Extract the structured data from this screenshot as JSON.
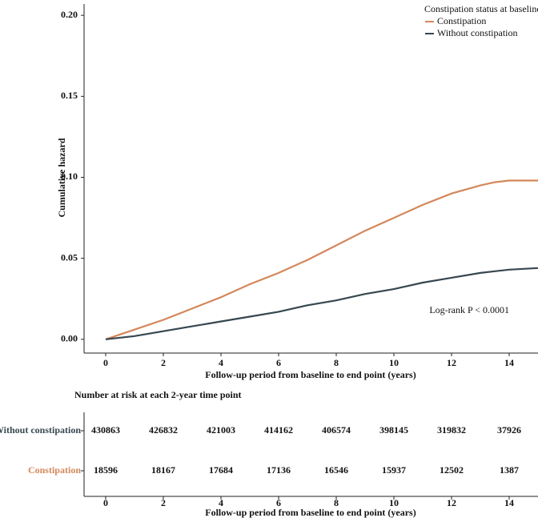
{
  "chart_data": {
    "type": "line",
    "xlabel": "Follow-up period from baseline to end point (years)",
    "ylabel": "Cumulative hazard",
    "legend_title": "Constipation status at baseline",
    "legend": "top-right",
    "annotation": "Log-rank P < 0.0001",
    "x": [
      0,
      1,
      2,
      3,
      4,
      5,
      6,
      7,
      8,
      9,
      10,
      11,
      12,
      13,
      13.5,
      14,
      15
    ],
    "series": [
      {
        "name": "Constipation",
        "color": "#d4875a",
        "values": [
          0,
          0.006,
          0.012,
          0.019,
          0.026,
          0.034,
          0.041,
          0.049,
          0.058,
          0.067,
          0.075,
          0.083,
          0.09,
          0.095,
          0.097,
          0.098,
          0.098
        ]
      },
      {
        "name": "Without constipation",
        "color": "#37474f",
        "values": [
          0,
          0.002,
          0.005,
          0.008,
          0.011,
          0.014,
          0.017,
          0.021,
          0.024,
          0.028,
          0.031,
          0.035,
          0.038,
          0.041,
          0.042,
          0.043,
          0.044
        ]
      }
    ],
    "xlim": [
      -0.75,
      15
    ],
    "ylim": [
      -0.0085,
      0.207
    ],
    "xticks": [
      0,
      2,
      4,
      6,
      8,
      10,
      12,
      14
    ],
    "yticks": [
      {
        "value": 0,
        "label": "0.00"
      },
      {
        "value": 0.05,
        "label": "0.05"
      },
      {
        "value": 0.1,
        "label": "0.10"
      },
      {
        "value": 0.15,
        "label": "0.15"
      },
      {
        "value": 0.2,
        "label": "0.20"
      }
    ],
    "risk_table": {
      "title": "Number at risk at each 2-year time point",
      "xlabel": "Follow-up period from baseline to end point (years)",
      "xticks": [
        0,
        2,
        4,
        6,
        8,
        10,
        12,
        14
      ],
      "rows": [
        {
          "name": "Without constipation",
          "color": "#37474f",
          "values": [
            430863,
            426832,
            421003,
            414162,
            406574,
            398145,
            319832,
            37926
          ]
        },
        {
          "name": "Constipation",
          "color": "#d4875a",
          "values": [
            18596,
            18167,
            17684,
            17136,
            16546,
            15937,
            12502,
            1387
          ]
        }
      ]
    }
  }
}
